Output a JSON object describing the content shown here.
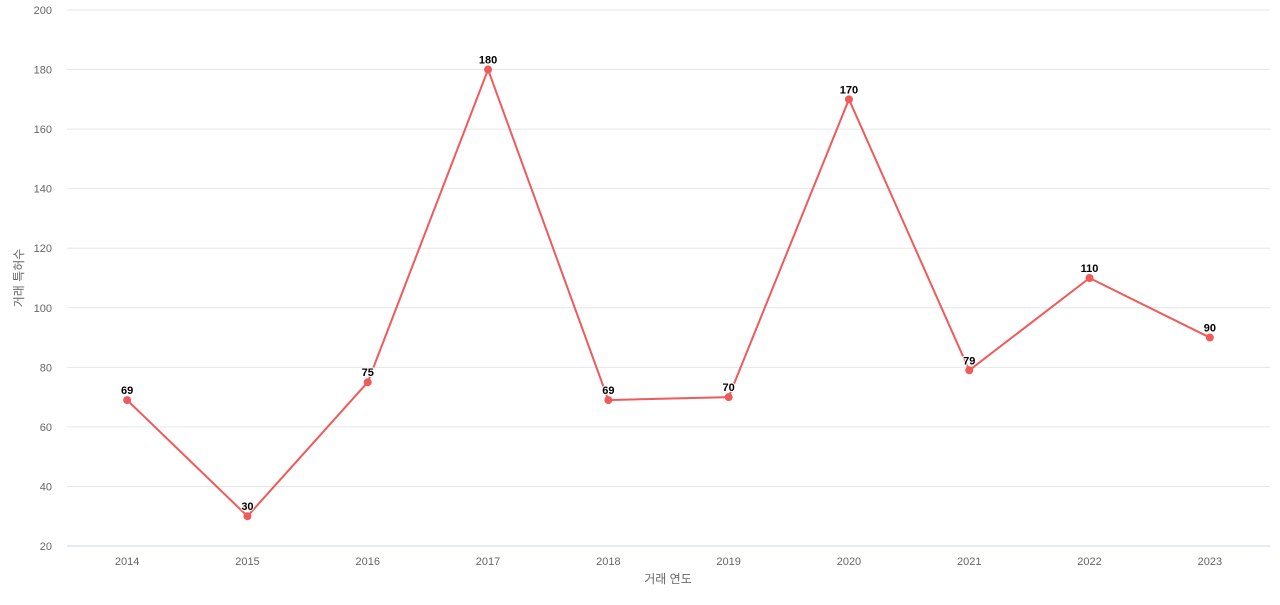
{
  "chart_data": {
    "type": "line",
    "title": "",
    "xlabel": "거래 연도",
    "ylabel": "거래 특허수",
    "categories": [
      "2014",
      "2015",
      "2016",
      "2017",
      "2018",
      "2019",
      "2020",
      "2021",
      "2022",
      "2023"
    ],
    "values": [
      69,
      30,
      75,
      180,
      69,
      70,
      170,
      79,
      110,
      90
    ],
    "ylim": [
      20,
      200
    ],
    "yticks": [
      20,
      40,
      60,
      80,
      100,
      120,
      140,
      160,
      180,
      200
    ],
    "grid": true,
    "data_labels": true,
    "colors": {
      "line": "#f05a5a",
      "grid": "#e6e6e6",
      "axis": "#ccd6eb",
      "tick_text": "#666666"
    }
  }
}
